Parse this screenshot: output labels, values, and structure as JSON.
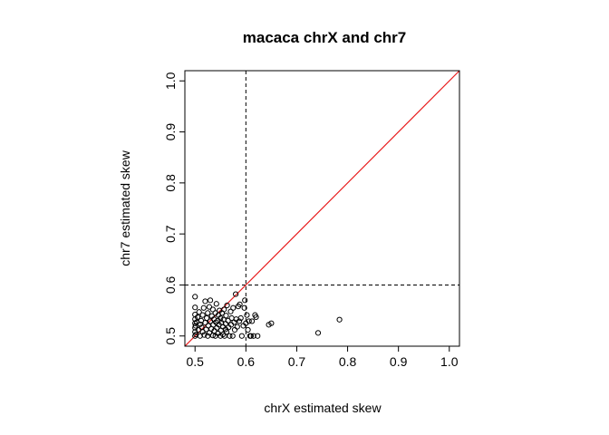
{
  "chart_data": {
    "type": "scatter",
    "title": "macaca chrX and chr7",
    "xlabel": "chrX estimated skew",
    "ylabel": "chr7 estimated skew",
    "xlim": [
      0.48,
      1.02
    ],
    "ylim": [
      0.48,
      1.02
    ],
    "xticks": [
      "0.5",
      "0.6",
      "0.7",
      "0.8",
      "0.9",
      "1.0"
    ],
    "yticks": [
      "0.5",
      "0.6",
      "0.7",
      "0.8",
      "0.9",
      "1.0"
    ],
    "grid": false,
    "legend": "none",
    "reference_lines": {
      "diagonal": {
        "slope": 1,
        "intercept": 0,
        "color": "#e8191a"
      },
      "vertical_dashed_x": 0.6,
      "horizontal_dashed_y": 0.6
    },
    "point_color": "#000000",
    "x": [
      0.5,
      0.5,
      0.5,
      0.5,
      0.5,
      0.5,
      0.5,
      0.5,
      0.501,
      0.502,
      0.503,
      0.505,
      0.507,
      0.508,
      0.51,
      0.51,
      0.512,
      0.513,
      0.515,
      0.515,
      0.517,
      0.518,
      0.52,
      0.52,
      0.522,
      0.523,
      0.525,
      0.525,
      0.526,
      0.528,
      0.528,
      0.53,
      0.53,
      0.532,
      0.533,
      0.535,
      0.535,
      0.536,
      0.537,
      0.538,
      0.54,
      0.54,
      0.541,
      0.542,
      0.543,
      0.545,
      0.545,
      0.546,
      0.547,
      0.548,
      0.55,
      0.55,
      0.551,
      0.552,
      0.553,
      0.555,
      0.555,
      0.556,
      0.557,
      0.558,
      0.56,
      0.56,
      0.561,
      0.562,
      0.563,
      0.565,
      0.566,
      0.568,
      0.57,
      0.571,
      0.572,
      0.574,
      0.575,
      0.577,
      0.578,
      0.58,
      0.581,
      0.583,
      0.585,
      0.587,
      0.588,
      0.59,
      0.592,
      0.595,
      0.597,
      0.598,
      0.6,
      0.602,
      0.604,
      0.606,
      0.608,
      0.61,
      0.612,
      0.615,
      0.618,
      0.62,
      0.623,
      0.645,
      0.65,
      0.742,
      0.784
    ],
    "y": [
      0.5,
      0.508,
      0.516,
      0.525,
      0.533,
      0.542,
      0.556,
      0.577,
      0.52,
      0.503,
      0.527,
      0.537,
      0.512,
      0.547,
      0.5,
      0.523,
      0.53,
      0.517,
      0.508,
      0.541,
      0.555,
      0.502,
      0.526,
      0.568,
      0.513,
      0.535,
      0.5,
      0.545,
      0.52,
      0.506,
      0.557,
      0.529,
      0.57,
      0.514,
      0.539,
      0.501,
      0.552,
      0.522,
      0.533,
      0.51,
      0.545,
      0.5,
      0.527,
      0.563,
      0.516,
      0.53,
      0.505,
      0.541,
      0.522,
      0.55,
      0.5,
      0.535,
      0.511,
      0.526,
      0.545,
      0.518,
      0.503,
      0.532,
      0.552,
      0.5,
      0.524,
      0.513,
      0.54,
      0.508,
      0.56,
      0.53,
      0.517,
      0.5,
      0.548,
      0.522,
      0.535,
      0.5,
      0.555,
      0.527,
      0.512,
      0.582,
      0.533,
      0.518,
      0.558,
      0.529,
      0.562,
      0.535,
      0.5,
      0.52,
      0.555,
      0.57,
      0.525,
      0.541,
      0.512,
      0.529,
      0.5,
      0.5,
      0.529,
      0.5,
      0.541,
      0.537,
      0.5,
      0.522,
      0.525,
      0.506,
      0.532
    ]
  }
}
